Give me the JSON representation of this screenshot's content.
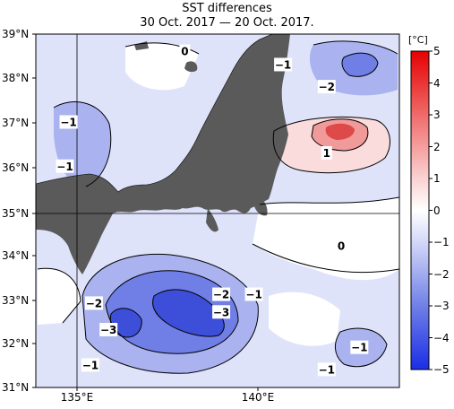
{
  "map": {
    "title": "SST differences",
    "subtitle": "30 Oct. 2017 — 20 Oct. 2017.",
    "lat_labels": [
      "39°N",
      "38°N",
      "37°N",
      "36°N",
      "35°N",
      "34°N",
      "33°N",
      "32°N",
      "31°N"
    ],
    "lon_labels": [
      "135°E",
      "140°E"
    ],
    "lat_range": [
      31,
      39
    ],
    "lon_range": [
      134,
      144
    ],
    "colors": {
      "land": "#5a5a5a",
      "ocean_zero": "#ffffff",
      "cool_light": "#dfe3fa",
      "cool_mid": "#aab3ef",
      "cool_strong": "#6f7fe6",
      "cool_max": "#3d4fd8",
      "warm_light": "#fbdcdc",
      "warm_mid": "#f09a9a",
      "warm_strong": "#de4a4a"
    },
    "contour_labels": [
      {
        "text": "0",
        "lon": 138.1,
        "lat": 38.6
      },
      {
        "text": "−1",
        "lon": 140.8,
        "lat": 38.3
      },
      {
        "text": "−2",
        "lon": 142.0,
        "lat": 37.8
      },
      {
        "text": "−1",
        "lon": 134.9,
        "lat": 37.0
      },
      {
        "text": "−1",
        "lon": 134.8,
        "lat": 36.0
      },
      {
        "text": "1",
        "lon": 142.0,
        "lat": 36.3
      },
      {
        "text": "0",
        "lon": 142.4,
        "lat": 34.2
      },
      {
        "text": "−2",
        "lon": 139.1,
        "lat": 33.1
      },
      {
        "text": "−1",
        "lon": 140.0,
        "lat": 33.1
      },
      {
        "text": "−2",
        "lon": 135.6,
        "lat": 32.9
      },
      {
        "text": "−3",
        "lon": 139.1,
        "lat": 32.7
      },
      {
        "text": "−3",
        "lon": 136.0,
        "lat": 32.3
      },
      {
        "text": "−1",
        "lon": 135.5,
        "lat": 31.5
      },
      {
        "text": "−1",
        "lon": 142.9,
        "lat": 31.9
      },
      {
        "text": "−1",
        "lon": 142.0,
        "lat": 31.4
      }
    ]
  },
  "colorbar": {
    "unit": "[°C]",
    "ticks": [
      "5",
      "4",
      "3",
      "2",
      "1",
      "0",
      "−1",
      "−2",
      "−3",
      "−4",
      "−5"
    ],
    "range": [
      -5,
      5
    ]
  }
}
